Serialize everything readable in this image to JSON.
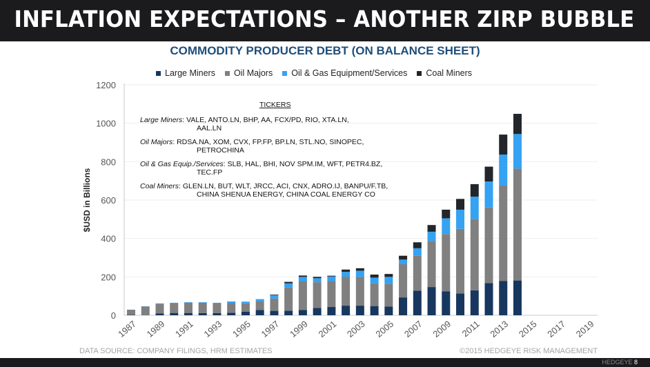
{
  "header": {
    "title": "INFLATION EXPECTATIONS – ANOTHER ZIRP BUBBLE"
  },
  "tickers": {
    "heading": "TICKERS",
    "groups": [
      {
        "label": "Large Miners",
        "line1": ": VALE, ANTO.LN, BHP, AA, FCX/PD, RIO, XTA.LN,",
        "line2": "AAL.LN"
      },
      {
        "label": "Oil Majors",
        "line1": ": RDSA.NA, XOM, CVX, FP.FP, BP.LN, STL.NO, SINOPEC,",
        "line2": "PETROCHINA"
      },
      {
        "label": "Oil & Gas Equip./Services",
        "line1": ": SLB, HAL, BHI, NOV SPM.IM, WFT,  PETR4.BZ,",
        "line2": "TEC.FP"
      },
      {
        "label": "Coal Miners",
        "line1": ": GLEN.LN, BUT, WLT, JRCC, ACI, CNX, ADRO.IJ,  BANPU/F.TB,",
        "line2": "CHINA SHENUA ENERGY, CHINA COAL ENERGY CO"
      }
    ]
  },
  "footer": {
    "source": "DATA SOURCE: COMPANY FILINGS, HRM ESTIMATES",
    "copyright": "©2015 HEDGEYE RISK MANAGEMENT",
    "brand": "HEDGEYE",
    "page": "8"
  },
  "chart_data": {
    "type": "bar",
    "stacked": true,
    "title": "COMMODITY PRODUCER DEBT (ON BALANCE SHEET)",
    "ylabel": "$USD in Billions",
    "xlabel": "",
    "ylim": [
      0,
      1200
    ],
    "yticks": [
      0,
      200,
      400,
      600,
      800,
      1000,
      1200
    ],
    "xlim": [
      1987,
      2019
    ],
    "xtick_labels": [
      "1987",
      "1989",
      "1991",
      "1993",
      "1995",
      "1997",
      "1999",
      "2001",
      "2003",
      "2005",
      "2007",
      "2009",
      "2011",
      "2013",
      "2015",
      "2017",
      "2019"
    ],
    "legend_position": "top",
    "grid": "horizontal",
    "categories": [
      1987,
      1988,
      1989,
      1990,
      1991,
      1992,
      1993,
      1994,
      1995,
      1996,
      1997,
      1998,
      1999,
      2000,
      2001,
      2002,
      2003,
      2004,
      2005,
      2006,
      2007,
      2008,
      2009,
      2010,
      2011,
      2012,
      2013,
      2014
    ],
    "series": [
      {
        "name": "Large Miners",
        "color": "#17375e",
        "values": [
          2,
          1,
          9,
          12,
          12,
          11,
          11,
          13,
          18,
          27,
          23,
          24,
          27,
          38,
          43,
          50,
          50,
          48,
          45,
          93,
          128,
          147,
          125,
          113,
          130,
          168,
          179,
          181
        ]
      },
      {
        "name": "Oil Majors",
        "color": "#808080",
        "values": [
          27,
          45,
          51,
          51,
          53,
          54,
          52,
          50,
          44,
          45,
          64,
          121,
          151,
          134,
          135,
          151,
          150,
          118,
          119,
          173,
          182,
          240,
          298,
          337,
          372,
          393,
          498,
          583
        ]
      },
      {
        "name": "Oil & Gas Equipment/Services",
        "color": "#35a2f2",
        "values": [
          0,
          1,
          2,
          2,
          3,
          3,
          2,
          9,
          9,
          12,
          18,
          21,
          22,
          21,
          24,
          25,
          32,
          30,
          36,
          24,
          39,
          48,
          82,
          100,
          116,
          136,
          160,
          180
        ]
      },
      {
        "name": "Coal Miners",
        "color": "#22262a",
        "values": [
          0,
          0,
          0,
          0,
          0,
          0,
          0,
          0,
          0,
          0,
          3,
          8,
          7,
          7,
          4,
          12,
          13,
          16,
          15,
          20,
          31,
          35,
          45,
          56,
          65,
          77,
          104,
          105
        ]
      }
    ]
  }
}
